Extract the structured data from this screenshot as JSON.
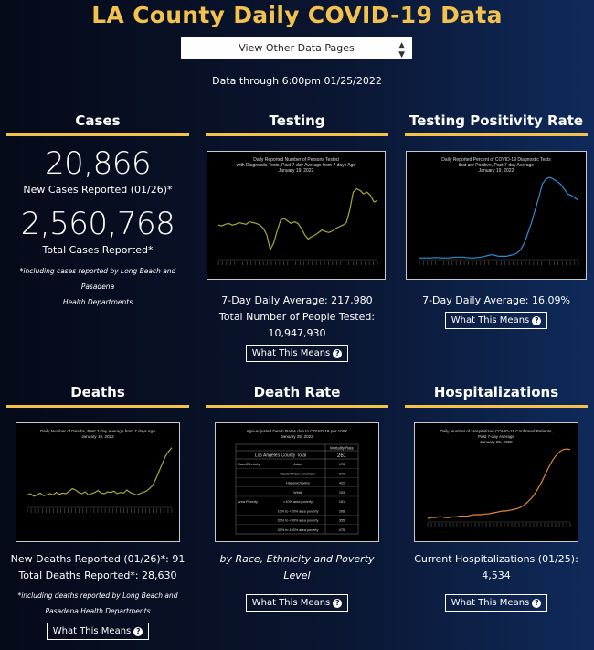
{
  "page": {
    "title": "LA County Daily COVID-19 Data",
    "selector_label": "View Other Data Pages",
    "data_through": "Data through 6:00pm 01/25/2022"
  },
  "colors": {
    "accent": "#f2c14e",
    "olive": "#a8a83a",
    "blue": "#2e8fd6",
    "orange": "#e08a2c"
  },
  "cases": {
    "heading": "Cases",
    "new_value": "20,866",
    "new_label": "New Cases Reported (01/26)*",
    "total_value": "2,560,768",
    "total_label": "Total Cases Reported*",
    "note_line1": "*including cases reported by Long Beach and Pasadena",
    "note_line2": "Health Departments"
  },
  "testing": {
    "heading": "Testing",
    "chart_title1": "Daily Reported Number of Persons Tested",
    "chart_title2": "with Diagnostic Tests, Past 7-day Average from 7 days Ago",
    "chart_title3": "January 19, 2022",
    "stat1": "7-Day Daily Average: 217,980",
    "stat2": "Total Number of People Tested: 10,947,930",
    "button": "What This Means"
  },
  "positivity": {
    "heading": "Testing Positivity Rate",
    "chart_title1": "Daily Reported Percent of COVID-19 Diagnostic Tests",
    "chart_title2": "that are Positive, Past 7-day Average",
    "chart_title3": "January 19, 2022",
    "stat1": "7-Day Daily Average: 16.09%",
    "button": "What This Means"
  },
  "deaths": {
    "heading": "Deaths",
    "chart_title1": "Daily Number of Deaths, Past 7-day Average from 7 days Ago",
    "chart_title2": "January 19, 2022",
    "stat1": "New Deaths Reported (01/26)*: 91",
    "stat2": "Total Deaths Reported*: 28,630",
    "note_line1": "*including deaths reported by Long Beach and",
    "note_line2": "Pasadena Health Departments",
    "button": "What This Means"
  },
  "death_rate": {
    "heading": "Death Rate",
    "table_title1": "Age-Adjusted Death Rates due to COVID-19 per 100K",
    "table_title2": "January 25, 2022",
    "col_header": "Mortality Rate",
    "total_label": "Los Angeles County Total",
    "total_value": "261",
    "rows": [
      {
        "group": "Race/Ethnicity",
        "label": "Asian",
        "value": "178"
      },
      {
        "group": "",
        "label": "Black/African American",
        "value": "371"
      },
      {
        "group": "",
        "label": "Hispanic/Latino",
        "value": "422"
      },
      {
        "group": "",
        "label": "White",
        "value": "153"
      },
      {
        "group": "Area Poverty",
        "label": "<10% area poverty",
        "value": "151"
      },
      {
        "group": "",
        "label": "10% to <20% area poverty",
        "value": "268"
      },
      {
        "group": "",
        "label": "20% to <30% area poverty",
        "value": "355"
      },
      {
        "group": "",
        "label": "30% to 100% area poverty",
        "value": "475"
      }
    ],
    "caption": "by Race, Ethnicity and Poverty Level",
    "button": "What This Means"
  },
  "hospitalizations": {
    "heading": "Hospitalizations",
    "chart_title1": "Daily Number of Hospitalized COVID-19 Confirmed Patients,",
    "chart_title2": "Past 7-day Average",
    "chart_title3": "January 25, 2022",
    "stat1": "Current Hospitalizations (01/25): 4,534",
    "button": "What This Means"
  },
  "chart_data": [
    {
      "type": "line",
      "title": "Daily Reported Number of Persons Tested with Diagnostic Tests, Past 7-day Average from 7 days Ago",
      "values": [
        0.42,
        0.41,
        0.43,
        0.44,
        0.42,
        0.43,
        0.45,
        0.44,
        0.43,
        0.46,
        0.45,
        0.44,
        0.42,
        0.38,
        0.3,
        0.12,
        0.2,
        0.35,
        0.48,
        0.5,
        0.47,
        0.44,
        0.46,
        0.44,
        0.38,
        0.3,
        0.25,
        0.28,
        0.3,
        0.33,
        0.36,
        0.34,
        0.33,
        0.35,
        0.38,
        0.4,
        0.42,
        0.45,
        0.6,
        0.82,
        0.86,
        0.84,
        0.8,
        0.82,
        0.78,
        0.7,
        0.72
      ]
    },
    {
      "type": "line",
      "title": "Daily Reported Percent of COVID-19 Diagnostic Tests that are Positive, Past 7-day Average",
      "values": [
        0.02,
        0.02,
        0.02,
        0.02,
        0.025,
        0.025,
        0.02,
        0.02,
        0.02,
        0.025,
        0.03,
        0.03,
        0.03,
        0.025,
        0.02,
        0.02,
        0.025,
        0.03,
        0.04,
        0.05,
        0.06,
        0.05,
        0.04,
        0.04,
        0.04,
        0.05,
        0.06,
        0.08,
        0.12,
        0.2,
        0.32,
        0.45,
        0.6,
        0.75,
        0.92,
        0.98,
        1.0,
        0.98,
        0.95,
        0.92,
        0.86,
        0.8,
        0.78,
        0.75,
        0.72
      ]
    },
    {
      "type": "line",
      "title": "Daily Number of Deaths, Past 7-day Average from 7 days Ago",
      "values": [
        0.2,
        0.22,
        0.18,
        0.2,
        0.23,
        0.19,
        0.2,
        0.22,
        0.2,
        0.24,
        0.21,
        0.23,
        0.22,
        0.26,
        0.3,
        0.28,
        0.24,
        0.22,
        0.25,
        0.2,
        0.22,
        0.24,
        0.27,
        0.23,
        0.22,
        0.25,
        0.24,
        0.26,
        0.22,
        0.24,
        0.23,
        0.28,
        0.24,
        0.22,
        0.2,
        0.22,
        0.24,
        0.26,
        0.3,
        0.35,
        0.45,
        0.58,
        0.7,
        0.82,
        0.9,
        0.96
      ]
    },
    {
      "type": "line",
      "title": "Daily Number of Hospitalized COVID-19 Confirmed Patients, Past 7-day Average",
      "values": [
        0.05,
        0.06,
        0.06,
        0.07,
        0.07,
        0.06,
        0.06,
        0.07,
        0.07,
        0.08,
        0.08,
        0.08,
        0.09,
        0.1,
        0.1,
        0.1,
        0.11,
        0.11,
        0.12,
        0.13,
        0.14,
        0.15,
        0.15,
        0.16,
        0.17,
        0.18,
        0.2,
        0.23,
        0.27,
        0.32,
        0.38,
        0.46,
        0.55,
        0.65,
        0.75,
        0.84,
        0.91,
        0.96,
        0.99,
        1.0,
        0.99
      ]
    }
  ]
}
